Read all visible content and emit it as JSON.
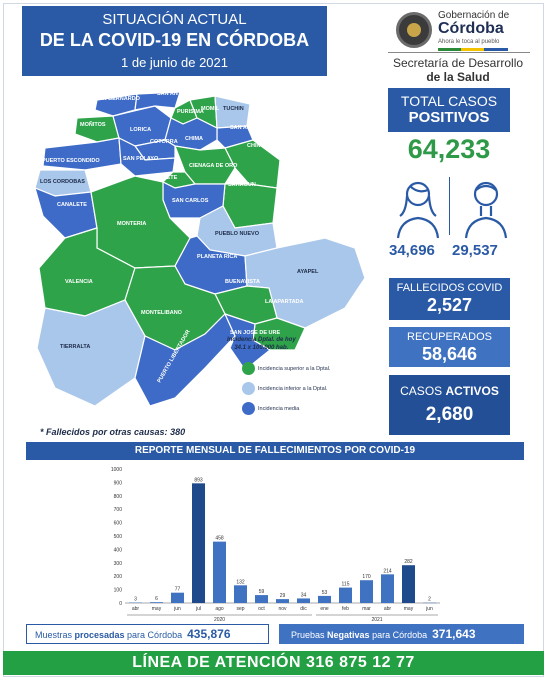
{
  "header": {
    "line1": "SITUACIÓN ACTUAL",
    "line2": "DE LA COVID-19 EN CÓRDOBA",
    "date": "1 de junio de 2021"
  },
  "logo": {
    "gov_prefix": "Gobernación de",
    "gov_name": "Córdoba",
    "slogan": "Ahora le toca al pueblo",
    "secretaria_line1": "Secretaría de Desarrollo",
    "secretaria_line2": "de la Salud"
  },
  "map": {
    "municipalities": [
      {
        "name": "SAN BERNARDO",
        "level": "media"
      },
      {
        "name": "SAN ANTERO",
        "level": "media"
      },
      {
        "name": "PURISIMA",
        "level": "superior"
      },
      {
        "name": "MOMIL",
        "level": "superior"
      },
      {
        "name": "TUCHIN",
        "level": "inferior"
      },
      {
        "name": "MOÑITOS",
        "level": "superior"
      },
      {
        "name": "LORICA",
        "level": "media"
      },
      {
        "name": "SAN ANDRES",
        "level": "media"
      },
      {
        "name": "CHIMA",
        "level": "media"
      },
      {
        "name": "COTORRA",
        "level": "media"
      },
      {
        "name": "CHINU",
        "level": "superior"
      },
      {
        "name": "PUERTO ESCONDIDO",
        "level": "media"
      },
      {
        "name": "SAN PELAYO",
        "level": "media"
      },
      {
        "name": "CIENAGA DE ORO",
        "level": "superior"
      },
      {
        "name": "CERETE",
        "level": "superior"
      },
      {
        "name": "LOS CORDOBAS",
        "level": "inferior"
      },
      {
        "name": "SAHAGUN",
        "level": "superior"
      },
      {
        "name": "CANALETE",
        "level": "media"
      },
      {
        "name": "SAN CARLOS",
        "level": "media"
      },
      {
        "name": "MONTERIA",
        "level": "superior"
      },
      {
        "name": "PUEBLO NUEVO",
        "level": "inferior"
      },
      {
        "name": "PLANETA RICA",
        "level": "media"
      },
      {
        "name": "AYAPEL",
        "level": "inferior"
      },
      {
        "name": "VALENCIA",
        "level": "superior"
      },
      {
        "name": "BUENAVISTA",
        "level": "superior"
      },
      {
        "name": "MONTELIBANO",
        "level": "superior"
      },
      {
        "name": "LA APARTADA",
        "level": "superior"
      },
      {
        "name": "TIERRALTA",
        "level": "inferior"
      },
      {
        "name": "PUERTO LIBERTADOR",
        "level": "media"
      },
      {
        "name": "SAN JOSE DE URE",
        "level": "media"
      }
    ],
    "incidence_line1": "Incidencia Dptal. de hoy",
    "incidence_line2": "34.1  x 100.000 hab.",
    "legend": [
      {
        "label": "Incidencia superior a la Dptal.",
        "color": "#2fa34a"
      },
      {
        "label": "Incidencia inferior a la Dptal.",
        "color": "#a9c7ea"
      },
      {
        "label": "Incidencia media",
        "color": "#3d6bc7"
      }
    ]
  },
  "stats": {
    "total_label1": "TOTAL CASOS",
    "total_label2": "POSITIVOS",
    "total_value": "64,233",
    "women": "34,696",
    "men": "29,537",
    "deaths_label": "FALLECIDOS COVID",
    "deaths_value": "2,527",
    "recovered_label": "RECUPERADOS",
    "recovered_value": "58,646",
    "active_label_a": "CASOS ",
    "active_label_b": "ACTIVOS",
    "active_value": "2,680"
  },
  "footnote": {
    "label": "* Fallecidos por otras causas:",
    "value": "380"
  },
  "report": {
    "title": "REPORTE MENSUAL DE FALLECIMIENTOS POR COVID-19"
  },
  "chart_data": {
    "type": "bar",
    "title": "REPORTE MENSUAL DE FALLECIMIENTOS POR COVID-19",
    "categories": [
      "abr",
      "may",
      "jun",
      "jul",
      "ago",
      "sep",
      "oct",
      "nov",
      "dic",
      "ene",
      "feb",
      "mar",
      "abr",
      "may",
      "jun"
    ],
    "groups": [
      {
        "label": "2020",
        "from": 0,
        "to": 8
      },
      {
        "label": "2021",
        "from": 9,
        "to": 14
      }
    ],
    "values": [
      3,
      6,
      77,
      893,
      458,
      132,
      59,
      29,
      34,
      53,
      115,
      170,
      214,
      282,
      2
    ],
    "highlight_colors": {
      "893": "#1e4a8c",
      "282": "#1e4a8c"
    },
    "bar_color": "#3f72c1",
    "yticks": [
      0,
      100,
      200,
      300,
      400,
      500,
      600,
      700,
      800,
      900,
      1000
    ],
    "ylim": [
      0,
      1000
    ]
  },
  "footer": {
    "samples_prefix": "Muestras ",
    "samples_mid": "procesadas",
    "samples_suffix": " para Córdoba",
    "samples_value": "435,876",
    "neg_prefix": "Pruebas ",
    "neg_mid": "Negativas",
    "neg_suffix": " para Córdoba",
    "neg_value": "371,643",
    "hotline": "LÍNEA DE ATENCIÓN 316 875 12 77"
  }
}
